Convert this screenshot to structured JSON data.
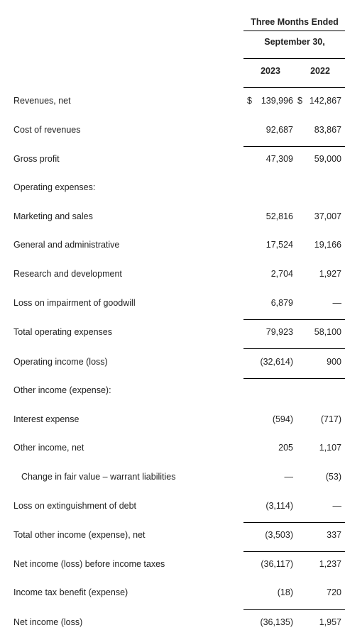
{
  "header": {
    "period_line1": "Three Months Ended",
    "period_line2": "September 30,",
    "col_2023": "2023",
    "col_2022": "2022"
  },
  "rows": [
    {
      "label": "Revenues, net",
      "v2023": "139,996",
      "v2022": "142,867",
      "cur2023": "$",
      "cur2022": "$"
    },
    {
      "label": "Cost of revenues",
      "v2023": "92,687",
      "v2022": "83,867"
    },
    {
      "label": "Gross profit",
      "v2023": "47,309",
      "v2022": "59,000"
    },
    {
      "label": "Operating expenses:",
      "v2023": "",
      "v2022": ""
    },
    {
      "label": "Marketing and sales",
      "v2023": "52,816",
      "v2022": "37,007"
    },
    {
      "label": "General and administrative",
      "v2023": "17,524",
      "v2022": "19,166"
    },
    {
      "label": "Research and development",
      "v2023": "2,704",
      "v2022": "1,927"
    },
    {
      "label": "Loss on impairment of goodwill",
      "v2023": "6,879",
      "v2022": "—"
    },
    {
      "label": "Total operating expenses",
      "v2023": "79,923",
      "v2022": "58,100"
    },
    {
      "label": "Operating income (loss)",
      "v2023": "(32,614)",
      "v2022": "900"
    },
    {
      "label": "Other income (expense):",
      "v2023": "",
      "v2022": ""
    },
    {
      "label": "Interest expense",
      "v2023": "(594)",
      "v2022": "(717)"
    },
    {
      "label": "Other income, net",
      "v2023": "205",
      "v2022": "1,107"
    },
    {
      "label": "Change in fair value – warrant liabilities",
      "v2023": "—",
      "v2022": "(53)"
    },
    {
      "label": "Loss on extinguishment of debt",
      "v2023": "(3,114)",
      "v2022": "—"
    },
    {
      "label": "Total other income (expense), net",
      "v2023": "(3,503)",
      "v2022": "337"
    },
    {
      "label": "Net income (loss) before income taxes",
      "v2023": "(36,117)",
      "v2022": "1,237"
    },
    {
      "label": "Income tax benefit (expense)",
      "v2023": "(18)",
      "v2022": "720"
    },
    {
      "label": "Net income (loss)",
      "v2023": "(36,135)",
      "v2022": "1,957"
    }
  ]
}
